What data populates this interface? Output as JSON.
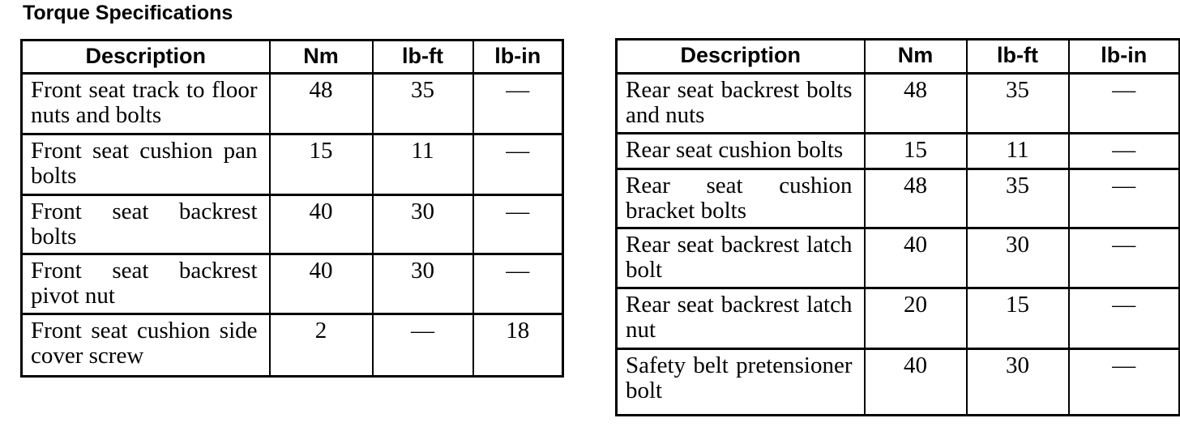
{
  "title": "Torque Specifications",
  "colors": {
    "text": "#000000",
    "border": "#000000",
    "background": "#ffffff"
  },
  "tables": [
    {
      "name": "front-seat-torque-table",
      "headers": [
        "Description",
        "Nm",
        "lb-ft",
        "lb-in"
      ],
      "rows": [
        [
          "Front seat track to floor nuts and bolts",
          "48",
          "35",
          "—"
        ],
        [
          "Front seat cushion pan bolts",
          "15",
          "11",
          "—"
        ],
        [
          "Front seat backrest bolts",
          "40",
          "30",
          "—"
        ],
        [
          "Front seat backrest pivot nut",
          "40",
          "30",
          "—"
        ],
        [
          "Front seat cushion side cover screw",
          "2",
          "—",
          "18"
        ]
      ]
    },
    {
      "name": "rear-seat-torque-table",
      "headers": [
        "Description",
        "Nm",
        "lb-ft",
        "lb-in"
      ],
      "rows": [
        [
          "Rear seat backrest bolts and nuts",
          "48",
          "35",
          "—"
        ],
        [
          "Rear seat cushion bolts",
          "15",
          "11",
          "—"
        ],
        [
          "Rear seat cushion bracket bolts",
          "48",
          "35",
          "—"
        ],
        [
          "Rear seat backrest latch bolt",
          "40",
          "30",
          "—"
        ],
        [
          "Rear seat backrest latch nut",
          "20",
          "15",
          "—"
        ],
        [
          "Safety belt pretensioner bolt",
          "40",
          "30",
          "—"
        ]
      ]
    }
  ]
}
